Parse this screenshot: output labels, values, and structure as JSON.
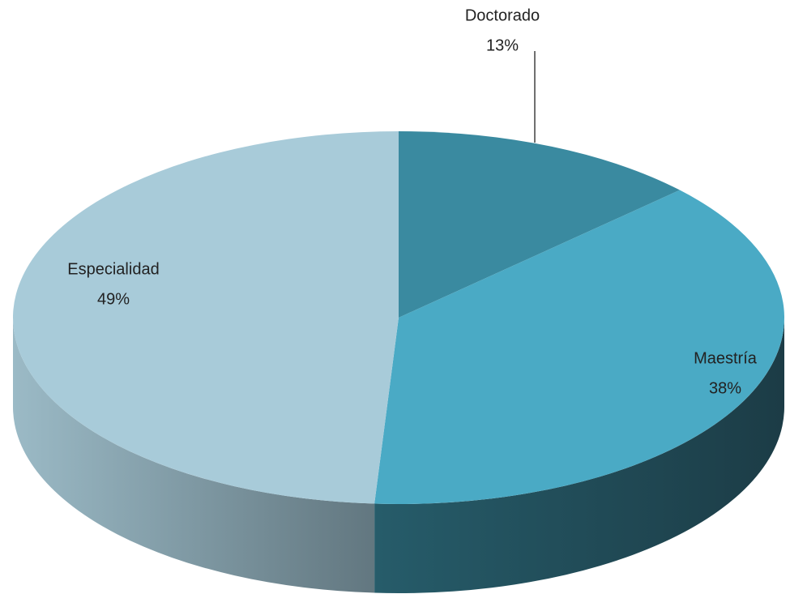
{
  "chart_data": {
    "type": "pie",
    "three_d": true,
    "categories": [
      "Doctorado",
      "Maestría",
      "Especialidad"
    ],
    "values": [
      13,
      38,
      49
    ],
    "value_labels": [
      "13%",
      "38%",
      "49%"
    ],
    "colors": [
      "#3a8aa0",
      "#4aaac5",
      "#a8cbd9"
    ]
  }
}
